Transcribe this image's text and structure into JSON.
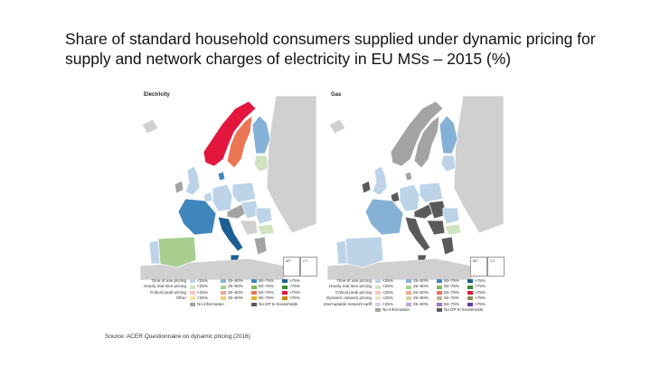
{
  "title": "Share of standard household consumers supplied under dynamic pricing for supply and network charges of electricity in EU MSs – 2015 (%)",
  "source": "Source: ACER Questionnaire on dynamic pricing (2016)",
  "colors": {
    "sea": "#ffffff",
    "nonEU": "#d0d0d0",
    "no_info": "#a3a3a3",
    "no_dp": "#5a5a5a",
    "tou": [
      "#bcd3e8",
      "#86b1d6",
      "#3f86bd",
      "#1d5e93"
    ],
    "rtp": [
      "#cfe3c1",
      "#a8cf90",
      "#7fb760",
      "#3d8a2c"
    ],
    "cpp": [
      "#f7c5b7",
      "#f2a68e",
      "#ec7555",
      "#e3163d"
    ],
    "other": [
      "#f7e3a3",
      "#f0cd6a",
      "#e6ad2c",
      "#c9840b"
    ],
    "dnp": [
      "#e9e2c5",
      "#d8ccab",
      "#bfb491",
      "#8d8562"
    ],
    "itn": [
      "#dccfe6",
      "#c2a9d6",
      "#9a78bf",
      "#6a3c98"
    ]
  },
  "panels": [
    {
      "id": "electricity",
      "label": "Electricity",
      "insets": [
        "MT",
        "CY"
      ],
      "legend": {
        "rows": [
          {
            "label": "Time of use pricing",
            "key": "tou",
            "items": [
              "<25%",
              "25–50%",
              "50–75%",
              ">75%"
            ]
          },
          {
            "label": "Hourly real time pricing",
            "key": "rtp",
            "items": [
              "<25%",
              "25–50%",
              "50–75%",
              ">75%"
            ]
          },
          {
            "label": "Critical peak pricing",
            "key": "cpp",
            "items": [
              "<25%",
              "25–50%",
              "50–75%",
              ">75%"
            ]
          },
          {
            "label": "Other",
            "key": "other",
            "items": [
              "<25%",
              "25–50%",
              "50–75%",
              ">75%"
            ]
          }
        ],
        "extra": [
          "No information",
          "No DP to households"
        ]
      }
    },
    {
      "id": "gas",
      "label": "Gas",
      "insets": [
        "MT",
        "CY"
      ],
      "legend": {
        "rows": [
          {
            "label": "Time of use pricing",
            "key": "tou",
            "items": [
              "<25%",
              "25–50%",
              "50–75%",
              ">75%"
            ]
          },
          {
            "label": "Hourly real time pricing",
            "key": "rtp",
            "items": [
              "<25%",
              "25–50%",
              "50–75%",
              ">75%"
            ]
          },
          {
            "label": "Critical peak pricing",
            "key": "cpp",
            "items": [
              "<25%",
              "25–50%",
              "50–75%",
              ">75%"
            ]
          },
          {
            "label": "Dynamic network pricing",
            "key": "dnp",
            "items": [
              "<25%",
              "25–50%",
              "50–75%",
              ">75%"
            ]
          },
          {
            "label": "Interruptable network tariff",
            "key": "itn",
            "items": [
              "<25%",
              "25–50%",
              "50–75%",
              ">75%"
            ]
          }
        ],
        "extra": [
          "No information",
          "No DP to households"
        ]
      }
    }
  ]
}
